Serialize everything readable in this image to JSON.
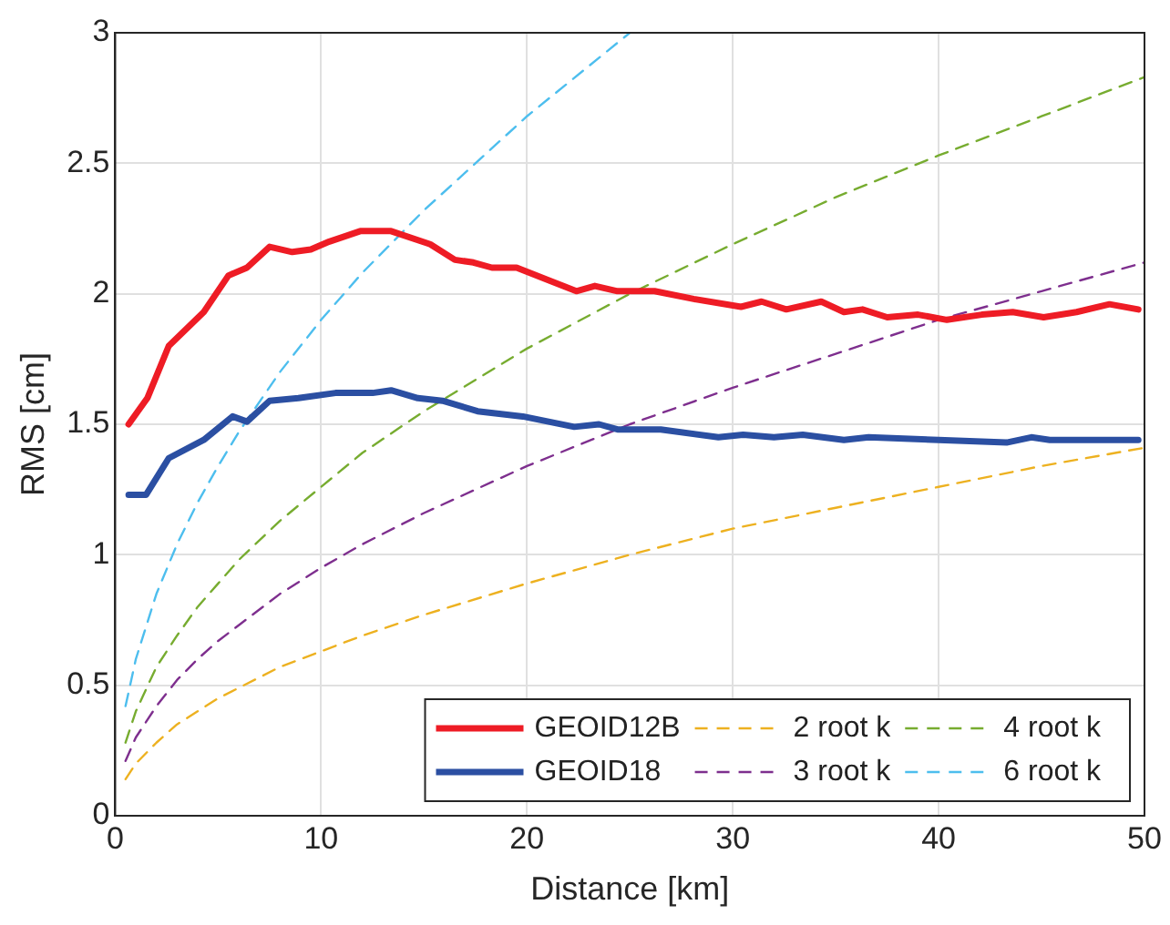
{
  "chart_data": {
    "type": "line",
    "xlabel": "Distance [km]",
    "ylabel": "RMS [cm]",
    "xlim": [
      0,
      50
    ],
    "xticks": [
      0,
      10,
      20,
      30,
      40,
      50
    ],
    "ylim": [
      0,
      3
    ],
    "yticks": [
      0,
      0.5,
      1,
      1.5,
      2,
      2.5,
      3
    ],
    "grid": true,
    "legend": "bottom right",
    "marker": "none",
    "series": [
      {
        "name": "GEOID12B",
        "color": "#ee1c25",
        "line_style": "solid",
        "x": [
          0.65,
          1.56,
          2.6,
          4.3,
          5.5,
          6.4,
          7.5,
          8.6,
          9.5,
          10.4,
          11.9,
          13.4,
          15.3,
          16.5,
          17.4,
          18.3,
          19.5,
          21.1,
          22.4,
          23.3,
          24.4,
          26.2,
          28.1,
          30.4,
          31.4,
          32.6,
          34.3,
          35.4,
          36.3,
          37.5,
          39.0,
          40.4,
          42.1,
          43.6,
          45.1,
          46.7,
          48.3,
          49.7
        ],
        "values": [
          1.5,
          1.6,
          1.8,
          1.93,
          2.07,
          2.1,
          2.18,
          2.16,
          2.17,
          2.2,
          2.24,
          2.24,
          2.19,
          2.13,
          2.12,
          2.1,
          2.1,
          2.05,
          2.01,
          2.03,
          2.01,
          2.01,
          1.98,
          1.95,
          1.97,
          1.94,
          1.97,
          1.93,
          1.94,
          1.91,
          1.92,
          1.9,
          1.92,
          1.93,
          1.91,
          1.93,
          1.96,
          1.94
        ]
      },
      {
        "name": "GEOID18",
        "color": "#2b4fa2",
        "line_style": "solid",
        "x": [
          0.65,
          1.5,
          2.6,
          4.3,
          5.7,
          6.4,
          7.5,
          8.9,
          10.7,
          12.5,
          13.4,
          14.7,
          15.9,
          17.6,
          19.8,
          22.3,
          23.5,
          24.4,
          26.5,
          29.3,
          30.5,
          32.0,
          33.4,
          35.4,
          36.6,
          40.0,
          43.3,
          44.5,
          45.4,
          49.7
        ],
        "values": [
          1.23,
          1.23,
          1.37,
          1.44,
          1.53,
          1.51,
          1.59,
          1.6,
          1.62,
          1.62,
          1.63,
          1.6,
          1.59,
          1.55,
          1.53,
          1.49,
          1.5,
          1.48,
          1.48,
          1.45,
          1.46,
          1.45,
          1.46,
          1.44,
          1.45,
          1.44,
          1.43,
          1.45,
          1.44,
          1.44
        ]
      },
      {
        "name": "2 root k",
        "color": "#edb120",
        "line_style": "dashed",
        "x": [
          0.5,
          1,
          2,
          3,
          4,
          5,
          6,
          8,
          10,
          12,
          15,
          20,
          25,
          30,
          35,
          40,
          45,
          50
        ],
        "values": [
          0.14,
          0.2,
          0.28,
          0.35,
          0.4,
          0.45,
          0.49,
          0.57,
          0.63,
          0.69,
          0.77,
          0.89,
          1.0,
          1.1,
          1.18,
          1.26,
          1.34,
          1.41
        ]
      },
      {
        "name": "3 root k",
        "color": "#7e2f8e",
        "line_style": "dashed",
        "x": [
          0.5,
          1,
          2,
          3,
          4,
          5,
          6,
          8,
          10,
          12,
          15,
          20,
          25,
          30,
          35,
          40,
          45,
          50
        ],
        "values": [
          0.21,
          0.3,
          0.42,
          0.52,
          0.6,
          0.67,
          0.73,
          0.85,
          0.95,
          1.04,
          1.16,
          1.34,
          1.5,
          1.64,
          1.77,
          1.9,
          2.01,
          2.12
        ]
      },
      {
        "name": "4 root k",
        "color": "#77ac30",
        "line_style": "dashed",
        "x": [
          0.5,
          1,
          2,
          3,
          4,
          5,
          6,
          8,
          10,
          12,
          15,
          20,
          25,
          30,
          35,
          40,
          45,
          50
        ],
        "values": [
          0.28,
          0.4,
          0.57,
          0.69,
          0.8,
          0.89,
          0.98,
          1.13,
          1.26,
          1.39,
          1.55,
          1.79,
          2.0,
          2.19,
          2.37,
          2.53,
          2.68,
          2.83
        ]
      },
      {
        "name": "6 root k",
        "color": "#4dbeee",
        "line_style": "dashed",
        "x": [
          0.5,
          1,
          2,
          3,
          4,
          5,
          6,
          8,
          10,
          12,
          15,
          20,
          25
        ],
        "values": [
          0.42,
          0.6,
          0.85,
          1.04,
          1.2,
          1.34,
          1.47,
          1.7,
          1.9,
          2.08,
          2.32,
          2.68,
          3.0
        ]
      }
    ]
  }
}
